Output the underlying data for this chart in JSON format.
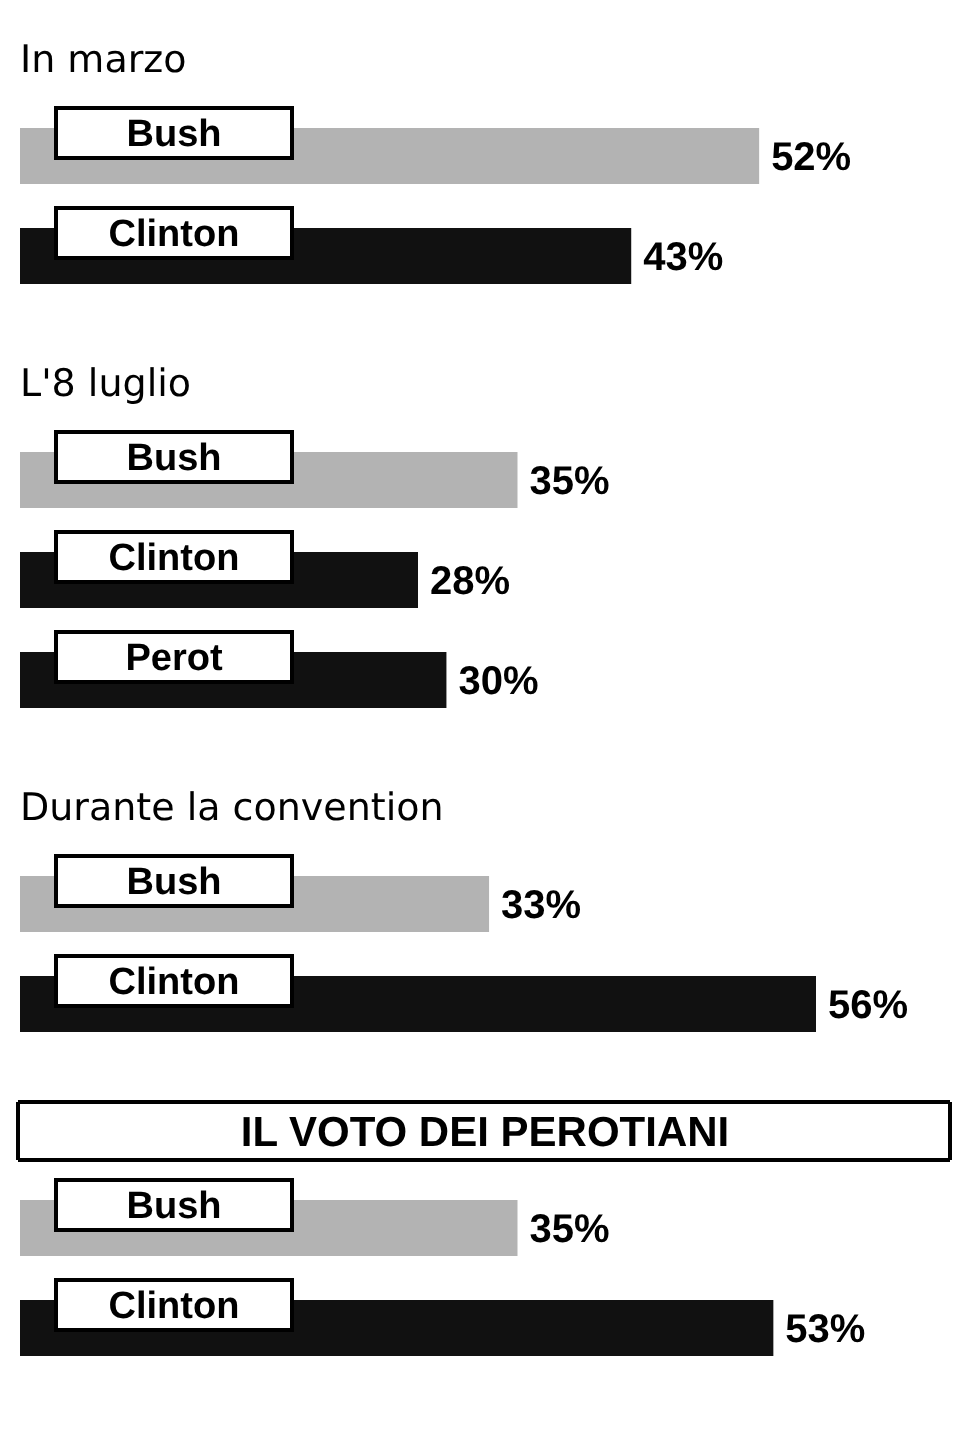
{
  "chart_data": [
    {
      "type": "bar",
      "orientation": "horizontal",
      "title": "In marzo",
      "categories": [
        "Bush",
        "Clinton"
      ],
      "values": [
        52,
        43
      ],
      "colors": [
        "#b3b3b3",
        "#111111"
      ],
      "value_labels": [
        "52%",
        "43%"
      ],
      "tick_labels": false
    },
    {
      "type": "bar",
      "orientation": "horizontal",
      "title": "L'8 luglio",
      "categories": [
        "Bush",
        "Clinton",
        "Perot"
      ],
      "values": [
        35,
        28,
        30
      ],
      "colors": [
        "#b3b3b3",
        "#111111",
        "#111111"
      ],
      "value_labels": [
        "35%",
        "28%",
        "30%"
      ],
      "tick_labels": false
    },
    {
      "type": "bar",
      "orientation": "horizontal",
      "title": "Durante la convention",
      "categories": [
        "Bush",
        "Clinton"
      ],
      "values": [
        33,
        56
      ],
      "colors": [
        "#b3b3b3",
        "#111111"
      ],
      "value_labels": [
        "33%",
        "56%"
      ],
      "tick_labels": false
    },
    {
      "type": "bar",
      "orientation": "horizontal",
      "title": "IL VOTO DEI PEROTIANI",
      "categories": [
        "Bush",
        "Clinton"
      ],
      "values": [
        35,
        53
      ],
      "colors": [
        "#b3b3b3",
        "#111111"
      ],
      "value_labels": [
        "35%",
        "53%"
      ],
      "tick_labels": false
    }
  ]
}
